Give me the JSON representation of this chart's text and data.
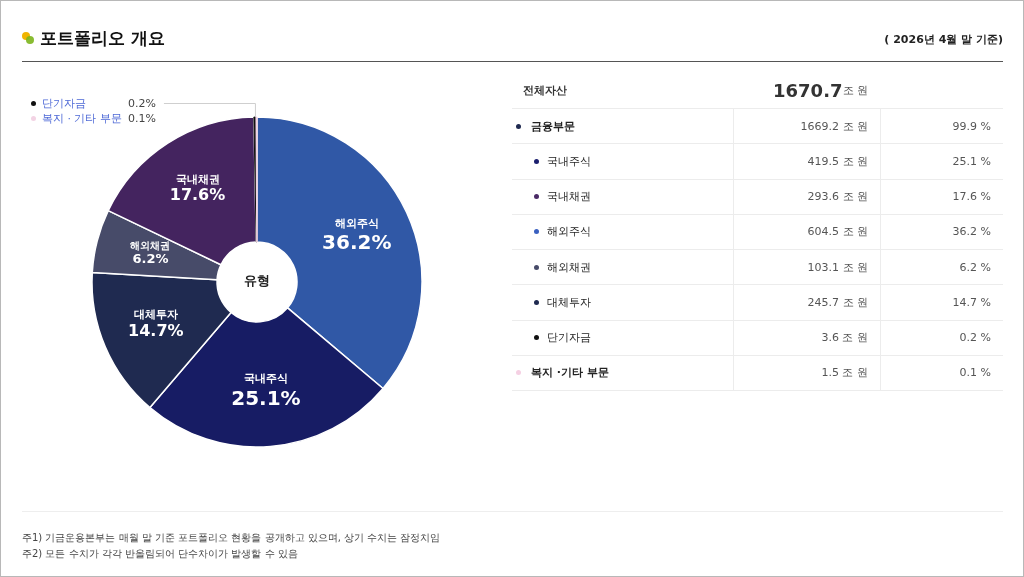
{
  "chart_data": [
    {
      "type": "donut",
      "title": "포트폴리오 개요",
      "categories": [
        "해외주식",
        "국내주식",
        "대체투자",
        "해외채권",
        "국내채권",
        "단기자금",
        "복지 · 기타 부문"
      ],
      "values": [
        36.2,
        25.1,
        14.7,
        6.2,
        17.6,
        0.2,
        0.1
      ],
      "colors": [
        "#3058a6",
        "#171c64",
        "#1f2a50",
        "#474b69",
        "#44245f",
        "#111111",
        "#f3d3e4"
      ],
      "value_labels": [
        "36.2%",
        "25.1%",
        "14.7%",
        "6.2%",
        "17.6%",
        "0.2%",
        "0.1%"
      ],
      "legend": "top left",
      "annotations": [
        "유형",
        "주1) 기금운용본부는 매월 말 기준 포트폴리오 현황을 공개하고 있으며, 상기 수치는 잠정치임",
        "주2) 모든 수치가 각각 반올림되어 단수차이가 발생할 수 있음"
      ]
    },
    {
      "type": "other",
      "subtitle": "( 2026년 4월 말 기준)",
      "y_categories": [
        "전체자산",
        "금융부문",
        "국내주식",
        "국내채권",
        "해외주식",
        "해외채권",
        "대체투자",
        "단기자금",
        "복지 ·기타 부문"
      ],
      "colors": [
        null,
        "#1f2a50",
        "#1b1f6e",
        "#4a2a66",
        "#3a60c0",
        "#474b69",
        "#1f2a50",
        "#111111",
        "#f5d0e3"
      ],
      "cell_labels": [
        [
          "1670.7조 원",
          null
        ],
        [
          "1669.2 조 원",
          "99.9 %"
        ],
        [
          "419.5 조 원",
          "25.1 %"
        ],
        [
          "293.6 조 원",
          "17.6 %"
        ],
        [
          "604.5 조 원",
          "36.2 %"
        ],
        [
          "103.1 조 원",
          "6.2 %"
        ],
        [
          "245.7 조 원",
          "14.7 %"
        ],
        [
          "3.6 조 원",
          "0.2 %"
        ],
        [
          "1.5 조 원",
          "0.1 %"
        ]
      ]
    }
  ]
}
